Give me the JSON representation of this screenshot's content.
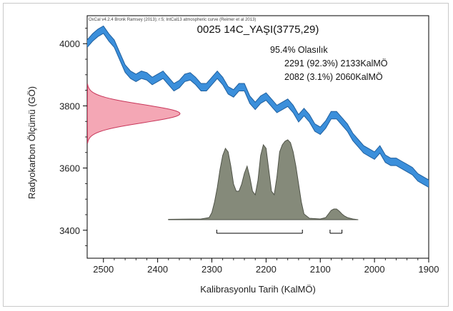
{
  "chart_data": {
    "type": "line",
    "credit": "OxCal v4.2.4 Bronk Ramsey (2013); r:5; IntCal13 atmospheric curve (Reimer et al 2013)",
    "title": "0025 14C_YAŞI(3775,29)",
    "xlabel": "Kalibrasyonlu Tarih (KalMÖ)",
    "ylabel": "Radyokarbon Ölçümü (GÖ)",
    "xlim": [
      2530,
      1900
    ],
    "ylim": [
      3310,
      4090
    ],
    "x_ticks": [
      2500,
      2400,
      2300,
      2200,
      2100,
      2000,
      1900
    ],
    "y_ticks": [
      3400,
      3600,
      3800,
      4000
    ],
    "probability_header": "95.4% Olasılık",
    "ranges": [
      {
        "label": "2291 (92.3%) 2133KalMÖ",
        "from": 2291,
        "to": 2133,
        "percent": 92.3
      },
      {
        "label": "2082 (3.1%) 2060KalMÖ",
        "from": 2082,
        "to": 2060,
        "percent": 3.1
      }
    ],
    "colors": {
      "curve": "#3b8fdb",
      "curve_edge": "#1f5f9e",
      "measurement": "#f4a7b5",
      "measurement_edge": "#c8365a",
      "posterior": "#858a7a",
      "posterior_edge": "#4f5348"
    },
    "series": [
      {
        "name": "",
        "x": [
          2530,
          2520,
          2510,
          2500,
          2490,
          2480,
          2470,
          2460,
          2450,
          2440,
          2430,
          2420,
          2410,
          2400,
          2390,
          2380,
          2370,
          2360,
          2350,
          2340,
          2330,
          2320,
          2310,
          2300,
          2290,
          2280,
          2270,
          2260,
          2250,
          2240,
          2230,
          2220,
          2210,
          2200,
          2190,
          2180,
          2170,
          2160,
          2150,
          2140,
          2130,
          2120,
          2110,
          2100,
          2090,
          2080,
          2070,
          2060,
          2050,
          2040,
          2030,
          2020,
          2010,
          2000,
          1990,
          1980,
          1970,
          1960,
          1950,
          1940,
          1930,
          1920,
          1910,
          1900
        ],
        "y": [
          4000,
          4020,
          4035,
          4045,
          4020,
          4000,
          3960,
          3920,
          3900,
          3890,
          3900,
          3895,
          3880,
          3890,
          3900,
          3880,
          3860,
          3870,
          3890,
          3895,
          3880,
          3860,
          3860,
          3880,
          3900,
          3880,
          3850,
          3840,
          3860,
          3860,
          3820,
          3800,
          3820,
          3830,
          3810,
          3790,
          3800,
          3810,
          3790,
          3760,
          3780,
          3760,
          3730,
          3720,
          3740,
          3770,
          3770,
          3750,
          3730,
          3700,
          3680,
          3660,
          3650,
          3640,
          3660,
          3630,
          3620,
          3620,
          3610,
          3600,
          3590,
          3570,
          3560,
          3550
        ]
      }
    ],
    "measurement": {
      "mean": 3775,
      "sigma": 29
    },
    "posterior": {
      "x": [
        2380,
        2320,
        2305,
        2300,
        2295,
        2290,
        2285,
        2280,
        2275,
        2270,
        2265,
        2260,
        2255,
        2250,
        2245,
        2240,
        2235,
        2230,
        2225,
        2220,
        2215,
        2210,
        2205,
        2200,
        2195,
        2190,
        2185,
        2180,
        2175,
        2170,
        2165,
        2160,
        2155,
        2150,
        2145,
        2140,
        2135,
        2130,
        2120,
        2100,
        2090,
        2085,
        2080,
        2075,
        2070,
        2065,
        2060,
        2055,
        2050,
        2040,
        2030
      ],
      "y": [
        0.005,
        0.01,
        0.03,
        0.1,
        0.25,
        0.45,
        0.7,
        0.9,
        1.0,
        0.95,
        0.75,
        0.5,
        0.4,
        0.4,
        0.5,
        0.65,
        0.75,
        0.6,
        0.4,
        0.35,
        0.55,
        0.9,
        1.05,
        1.0,
        0.7,
        0.4,
        0.35,
        0.6,
        0.95,
        1.05,
        1.1,
        1.12,
        1.08,
        0.95,
        0.75,
        0.5,
        0.25,
        0.08,
        0.02,
        0.01,
        0.03,
        0.08,
        0.13,
        0.15,
        0.15,
        0.12,
        0.08,
        0.05,
        0.03,
        0.01,
        0.0
      ]
    }
  }
}
